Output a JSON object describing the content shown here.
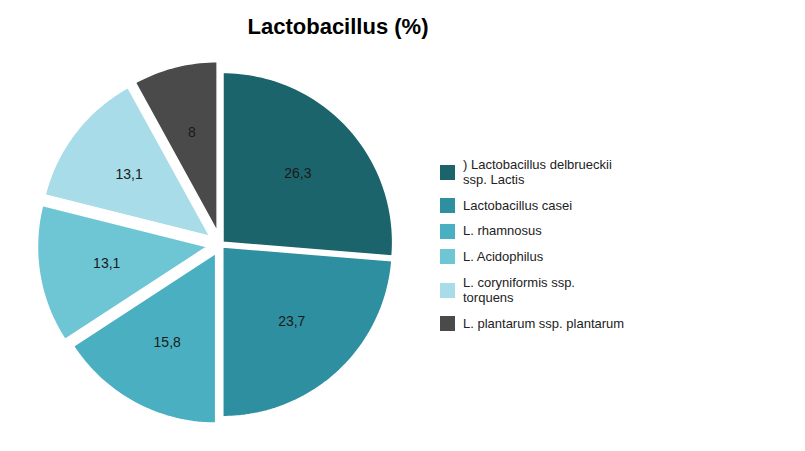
{
  "chart_data": {
    "type": "pie",
    "title": "Lactobacillus (%)",
    "categories": [
      ") Lactobacillus delbrueckii\nssp. Lactis",
      "Lactobacillus casei",
      "L. rhamnosus",
      "L. Acidophilus",
      "L. coryniformis ssp.\ntorquens",
      "L. plantarum ssp. plantarum"
    ],
    "values": [
      26.3,
      23.7,
      15.8,
      13.1,
      13.1,
      8.0
    ],
    "value_labels": [
      "26,3",
      "23,7",
      "15,8",
      "13,1",
      "13,1",
      "8"
    ],
    "colors": [
      "#1c646b",
      "#2e8fa0",
      "#4ab0c1",
      "#6ec5d4",
      "#a8dce8",
      "#4a4a4a"
    ],
    "data_labels": true,
    "legend": "right"
  }
}
